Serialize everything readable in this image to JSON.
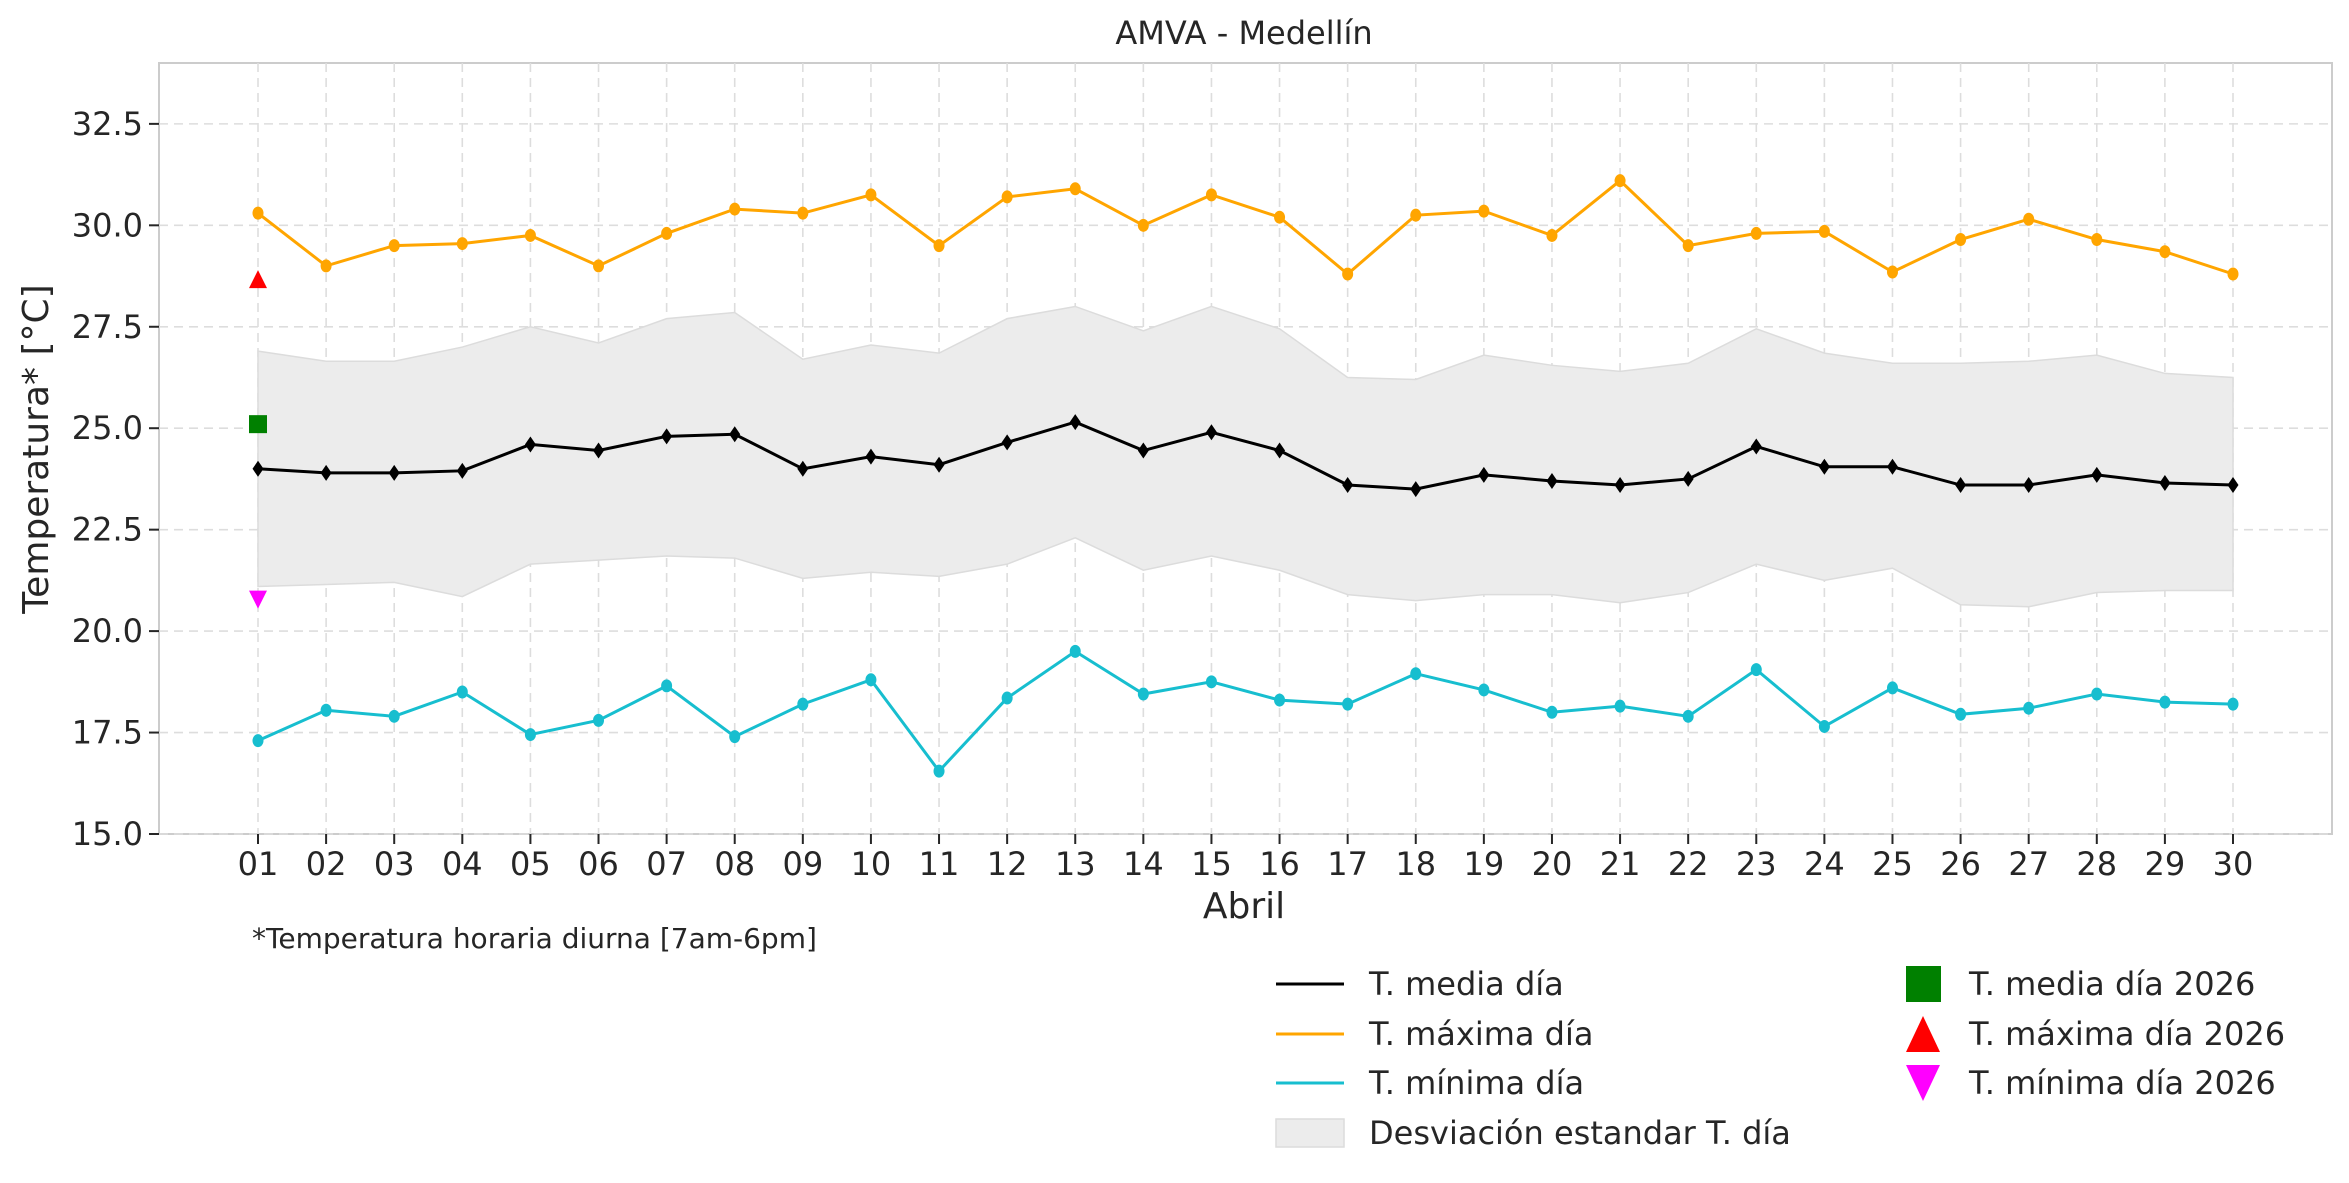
{
  "chart_data": {
    "type": "line",
    "title": "AMVA - Medellín",
    "xlabel": "Abril",
    "ylabel": "Temperatura* [°C]",
    "footnote": "*Temperatura horaria diurna [7am-6pm]",
    "ylim": [
      15.0,
      34.0
    ],
    "yticks": [
      "15.0",
      "17.5",
      "20.0",
      "22.5",
      "25.0",
      "27.5",
      "30.0",
      "32.5"
    ],
    "grid": true,
    "legend_position": "bottom-right, outside plot",
    "categories": [
      "01",
      "02",
      "03",
      "04",
      "05",
      "06",
      "07",
      "08",
      "09",
      "10",
      "11",
      "12",
      "13",
      "14",
      "15",
      "16",
      "17",
      "18",
      "19",
      "20",
      "21",
      "22",
      "23",
      "24",
      "25",
      "26",
      "27",
      "28",
      "29",
      "30"
    ],
    "series": [
      {
        "name": "T. media día",
        "color": "#000000",
        "marker": "diamond",
        "values": [
          24.0,
          23.9,
          23.9,
          23.95,
          24.6,
          24.45,
          24.8,
          24.85,
          24.0,
          24.3,
          24.1,
          24.65,
          25.15,
          24.45,
          24.9,
          24.45,
          23.6,
          23.5,
          23.85,
          23.7,
          23.6,
          23.75,
          24.55,
          24.05,
          24.05,
          23.6,
          23.6,
          23.85,
          23.65,
          23.6
        ]
      },
      {
        "name": "T. máxima día",
        "color": "#FFA500",
        "marker": "circle",
        "values": [
          30.3,
          29.0,
          29.5,
          29.55,
          29.75,
          29.0,
          29.8,
          30.4,
          30.3,
          30.75,
          29.5,
          30.7,
          30.9,
          30.0,
          30.75,
          30.2,
          28.8,
          30.25,
          30.35,
          29.75,
          31.1,
          29.5,
          29.8,
          29.85,
          28.85,
          29.65,
          30.15,
          29.65,
          29.35,
          28.8
        ]
      },
      {
        "name": "T. mínima día",
        "color": "#17BECF",
        "marker": "circle",
        "values": [
          17.3,
          18.05,
          17.9,
          18.5,
          17.45,
          17.8,
          18.65,
          17.4,
          18.2,
          18.8,
          16.55,
          18.35,
          19.5,
          18.45,
          18.75,
          18.3,
          18.2,
          18.95,
          18.55,
          18.0,
          18.15,
          17.9,
          19.05,
          17.65,
          18.6,
          17.95,
          18.1,
          18.45,
          18.25,
          18.2
        ]
      }
    ],
    "band": {
      "name": "Desviación estandar T. día",
      "color": "#ececec",
      "upper": [
        26.9,
        26.65,
        26.65,
        27.0,
        27.5,
        27.1,
        27.7,
        27.85,
        26.7,
        27.05,
        26.85,
        27.7,
        28.0,
        27.4,
        28.0,
        27.45,
        26.25,
        26.2,
        26.8,
        26.55,
        26.4,
        26.6,
        27.45,
        26.85,
        26.6,
        26.6,
        26.65,
        26.8,
        26.35,
        26.25
      ],
      "lower": [
        21.1,
        21.15,
        21.2,
        20.85,
        21.65,
        21.75,
        21.85,
        21.8,
        21.3,
        21.45,
        21.35,
        21.65,
        22.3,
        21.5,
        21.85,
        21.5,
        20.9,
        20.75,
        20.9,
        20.9,
        20.7,
        20.95,
        21.65,
        21.25,
        21.55,
        20.65,
        20.6,
        20.95,
        21.0,
        21.0
      ]
    },
    "points_2026": [
      {
        "name": "T. media día 2026",
        "day": "01",
        "value": 25.1,
        "color": "#008000",
        "marker": "square"
      },
      {
        "name": "T. máxima día 2026",
        "day": "01",
        "value": 28.65,
        "color": "#FF0000",
        "marker": "triangle-up"
      },
      {
        "name": "T. mínima día 2026",
        "day": "01",
        "value": 20.8,
        "color": "#FF00FF",
        "marker": "triangle-down"
      }
    ],
    "legend": [
      {
        "label": "T. media día",
        "kind": "line",
        "color": "#000000"
      },
      {
        "label": "T. máxima día",
        "kind": "line",
        "color": "#FFA500"
      },
      {
        "label": "T. mínima día",
        "kind": "line",
        "color": "#17BECF"
      },
      {
        "label": "Desviación estandar T. día",
        "kind": "patch",
        "color": "#ececec"
      },
      {
        "label": "T. media día 2026",
        "kind": "square",
        "color": "#008000"
      },
      {
        "label": "T. máxima día 2026",
        "kind": "triangle-up",
        "color": "#FF0000"
      },
      {
        "label": "T. mínima día 2026",
        "kind": "triangle-down",
        "color": "#FF00FF"
      }
    ]
  }
}
